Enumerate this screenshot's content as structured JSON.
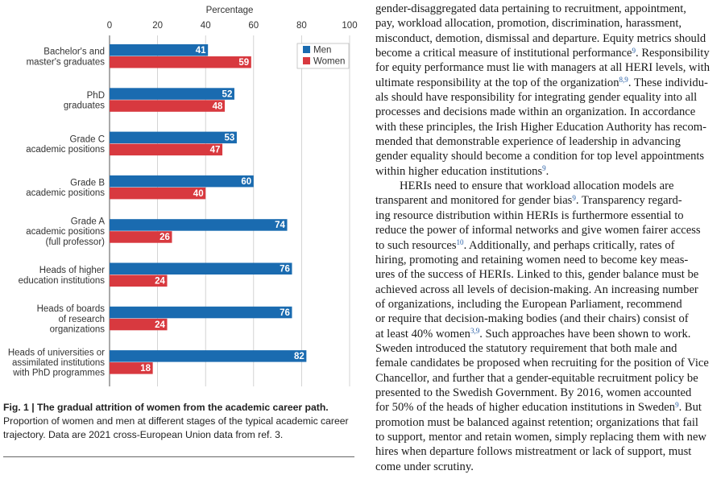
{
  "figure": {
    "caption_title": "Fig. 1 | The gradual attrition of women from the academic career path.",
    "caption_body": "Proportion of women and men at different stages of the typical academic career trajectory. Data are 2021 cross-European Union data from ref. 3."
  },
  "chart_data": {
    "type": "bar",
    "orientation": "horizontal",
    "xlabel": "Percentage",
    "xlim": [
      0,
      100
    ],
    "xticks": [
      0,
      20,
      40,
      60,
      80,
      100
    ],
    "grid": true,
    "legend_position": "top-right",
    "categories": [
      [
        "Bachelor's and",
        "master's graduates"
      ],
      [
        "PhD",
        "graduates"
      ],
      [
        "Grade C",
        "academic positions"
      ],
      [
        "Grade B",
        "academic positions"
      ],
      [
        "Grade A",
        "academic positions",
        "(full professor)"
      ],
      [
        "Heads of higher",
        "education institutions"
      ],
      [
        "Heads of boards",
        "of research",
        "organizations"
      ],
      [
        "Heads of universities or",
        "assimilated institutions",
        "with PhD programmes"
      ]
    ],
    "series": [
      {
        "name": "Men",
        "color": "#1a6bb0",
        "values": [
          41,
          52,
          53,
          60,
          74,
          76,
          76,
          82
        ]
      },
      {
        "name": "Women",
        "color": "#d8393f",
        "values": [
          59,
          48,
          47,
          40,
          26,
          24,
          24,
          18
        ]
      }
    ]
  },
  "article": {
    "paragraphs": [
      {
        "indent": false,
        "lines": [
          [
            {
              "t": "gender-disaggregated data pertaining to recruitment, appointment,"
            }
          ],
          [
            {
              "t": "pay, workload allocation, promotion, discrimination, harassment,"
            }
          ],
          [
            {
              "t": "misconduct, demotion, dismissal and departure. Equity metrics should"
            }
          ],
          [
            {
              "t": "become a critical measure of institutional performance"
            },
            {
              "s": "9"
            },
            {
              "t": ". Responsibility"
            }
          ],
          [
            {
              "t": "for equity performance must lie with managers at all HERI levels, with"
            }
          ],
          [
            {
              "t": "ultimate responsibility at the top of the organization"
            },
            {
              "s": "8,9"
            },
            {
              "t": ". These individu-"
            }
          ],
          [
            {
              "t": "als should have responsibility for integrating gender equality into all"
            }
          ],
          [
            {
              "t": "processes and decisions made within an organization. In accordance"
            }
          ],
          [
            {
              "t": "with these principles, the Irish Higher Education Authority has recom-"
            }
          ],
          [
            {
              "t": "mended that demonstrable experience of leadership in advancing"
            }
          ],
          [
            {
              "t": "gender equality should become a condition for top level appointments"
            }
          ],
          [
            {
              "t": "within higher education institutions"
            },
            {
              "s": "9"
            },
            {
              "t": "."
            }
          ]
        ]
      },
      {
        "indent": true,
        "lines": [
          [
            {
              "t": "HERIs need to ensure that workload allocation models are"
            }
          ],
          [
            {
              "t": "transparent and monitored for gender bias"
            },
            {
              "s": "9"
            },
            {
              "t": ". Transparency regard-"
            }
          ],
          [
            {
              "t": "ing resource distribution within HERIs is furthermore essential to"
            }
          ],
          [
            {
              "t": "reduce the power of informal networks and give women fairer access"
            }
          ],
          [
            {
              "t": "to such resources"
            },
            {
              "s": "10"
            },
            {
              "t": ". Additionally, and perhaps critically, rates of"
            }
          ],
          [
            {
              "t": "hiring, promoting and retaining women need to become key meas-"
            }
          ],
          [
            {
              "t": "ures of the success of HERIs. Linked to this, gender balance must be"
            }
          ],
          [
            {
              "t": "achieved across all levels of decision-making. An increasing number"
            }
          ],
          [
            {
              "t": "of organizations, including the European Parliament, recommend"
            }
          ],
          [
            {
              "t": "or require that decision-making bodies (and their chairs) consist of"
            }
          ],
          [
            {
              "t": "at least 40% women"
            },
            {
              "s": "3,9"
            },
            {
              "t": ". Such approaches have been shown to work."
            }
          ],
          [
            {
              "t": "Sweden introduced the statutory requirement that both male and"
            }
          ],
          [
            {
              "t": "female candidates be proposed when recruiting for the position of Vice"
            }
          ],
          [
            {
              "t": "Chancellor, and further that a gender-equitable recruitment policy be"
            }
          ],
          [
            {
              "t": "presented to the Swedish Government. By 2016, women accounted"
            }
          ],
          [
            {
              "t": "for 50% of the heads of higher education institutions in Sweden"
            },
            {
              "s": "9"
            },
            {
              "t": ". But"
            }
          ],
          [
            {
              "t": "promotion must be balanced against retention; organizations that fail"
            }
          ],
          [
            {
              "t": "to support, mentor and retain women, simply replacing them with new"
            }
          ],
          [
            {
              "t": "hires when departure follows mistreatment or lack of support, must"
            }
          ],
          [
            {
              "t": "come under scrutiny."
            }
          ]
        ]
      }
    ]
  }
}
